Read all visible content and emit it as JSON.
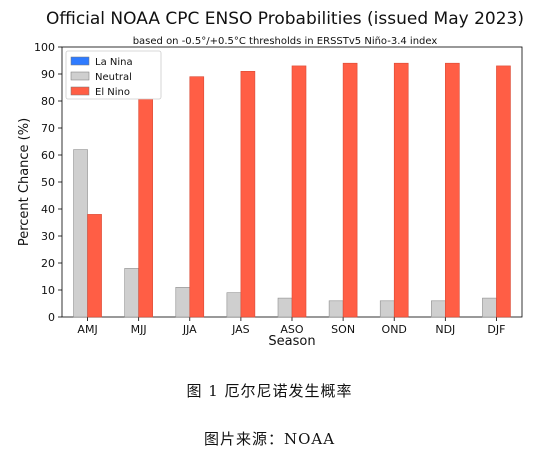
{
  "chart_data": {
    "type": "bar",
    "title": "Official NOAA CPC ENSO Probabilities (issued May 2023)",
    "subtitle": "based on -0.5°/+0.5°C thresholds in ERSSTv5 Niño-3.4 index",
    "xlabel": "Season",
    "ylabel": "Percent Chance (%)",
    "ylim": [
      0,
      100
    ],
    "yticks": [
      0,
      10,
      20,
      30,
      40,
      50,
      60,
      70,
      80,
      90,
      100
    ],
    "grid": false,
    "legend_position": "top-left",
    "categories": [
      "AMJ",
      "MJJ",
      "JJA",
      "JAS",
      "ASO",
      "SON",
      "OND",
      "NDJ",
      "DJF"
    ],
    "series": [
      {
        "name": "La Nina",
        "color": "#2f7bff",
        "values": [
          0,
          0,
          0,
          0,
          0,
          0,
          0,
          0,
          0
        ]
      },
      {
        "name": "Neutral",
        "color": "#cfcfcf",
        "values": [
          62,
          18,
          11,
          9,
          7,
          6,
          6,
          6,
          7
        ]
      },
      {
        "name": "El Nino",
        "color": "#ff5e45",
        "values": [
          38,
          82,
          89,
          91,
          93,
          94,
          94,
          94,
          93
        ]
      }
    ]
  },
  "captions": {
    "figure": "图 1  厄尔尼诺发生概率",
    "source": "图片来源：NOAA"
  }
}
